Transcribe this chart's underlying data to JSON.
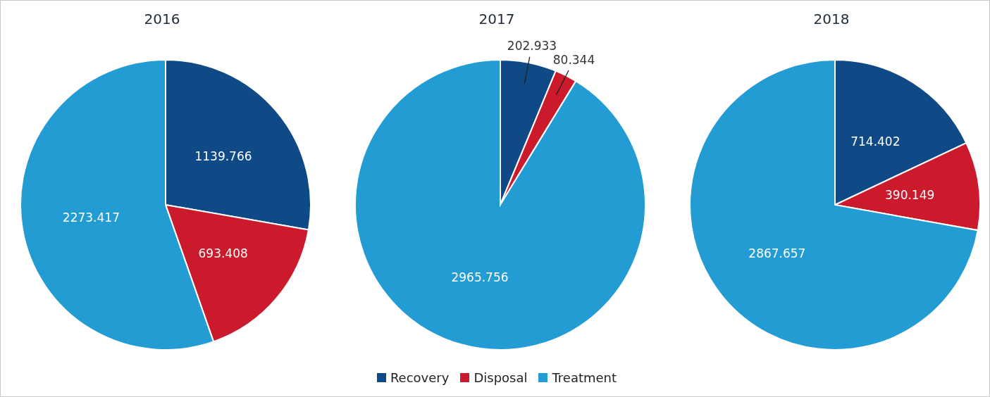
{
  "chart_data": [
    {
      "type": "pie",
      "title": "2016",
      "categories": [
        null,
        null,
        null
      ],
      "values": [
        1139.766,
        693.408,
        2273.417
      ],
      "colors": [
        "#0f4a87",
        "#cc1a2d",
        "#239bd3"
      ],
      "data_labels": true
    },
    {
      "type": "pie",
      "title": "2017",
      "categories": [
        "Recovery",
        "Disposal",
        "Treatment"
      ],
      "values": [
        202.933,
        80.344,
        2965.756
      ],
      "colors": [
        "#0f4a87",
        "#cc1a2d",
        "#239bd3"
      ],
      "data_labels": true,
      "legend": "bottom"
    },
    {
      "type": "pie",
      "title": "2018",
      "categories": [
        null,
        null,
        null
      ],
      "values": [
        714.402,
        390.149,
        2867.657
      ],
      "colors": [
        "#0f4a87",
        "#cc1a2d",
        "#239bd3"
      ],
      "data_labels": true
    }
  ]
}
